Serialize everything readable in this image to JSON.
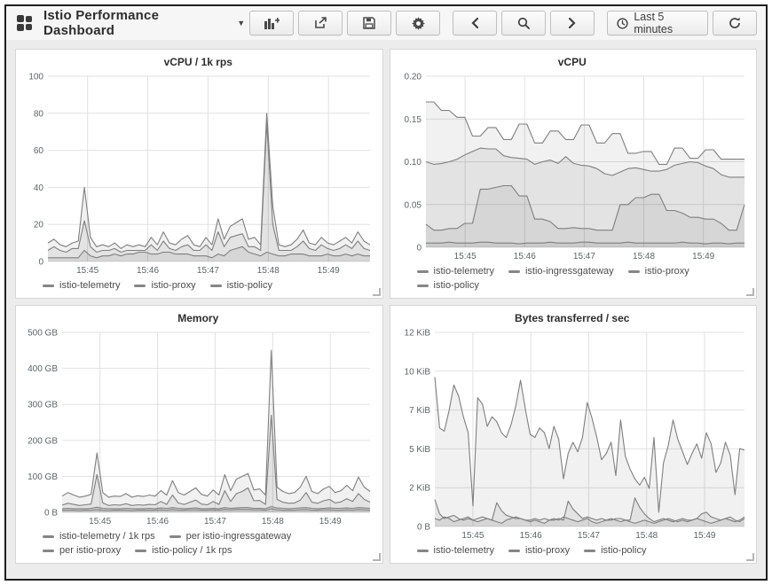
{
  "header": {
    "title": "Istio Performance Dashboard",
    "caret": "▼"
  },
  "toolbar": {
    "buttons": [
      "add-panel",
      "share-dashboard",
      "save-dashboard",
      "settings",
      "time-back",
      "zoom-out",
      "time-forward",
      "time-range",
      "refresh"
    ],
    "time_range_label": "Last 5 minutes"
  },
  "panels": [
    {
      "title": "vCPU / 1k rps",
      "chart_data": {
        "type": "area",
        "ymax": 100,
        "ylabels": [
          "100",
          "80",
          "60",
          "40",
          "20",
          "0"
        ],
        "axis_width": 32,
        "xticks": [
          {
            "label": "15:45",
            "f": 0.123
          },
          {
            "label": "15:46",
            "f": 0.31
          },
          {
            "label": "15:47",
            "f": 0.497
          },
          {
            "label": "15:48",
            "f": 0.684
          },
          {
            "label": "15:49",
            "f": 0.871
          }
        ],
        "series": [
          {
            "name": "istio-telemetry",
            "values": [
              10,
              12,
              9,
              8,
              10,
              11,
              40,
              13,
              8,
              9,
              8,
              10,
              7,
              9,
              8,
              9,
              8,
              13,
              9,
              16,
              10,
              9,
              12,
              14,
              9,
              8,
              13,
              9,
              23,
              12,
              19,
              21,
              23,
              12,
              13,
              9,
              80,
              30,
              9,
              8,
              9,
              12,
              17,
              10,
              9,
              13,
              10,
              9,
              11,
              13,
              10,
              16,
              11,
              9
            ]
          },
          {
            "name": "istio-proxy",
            "values": [
              6,
              8,
              6,
              5,
              7,
              7,
              22,
              8,
              5,
              6,
              6,
              7,
              5,
              6,
              6,
              6,
              6,
              9,
              6,
              11,
              7,
              6,
              8,
              9,
              6,
              6,
              9,
              6,
              16,
              8,
              13,
              14,
              15,
              8,
              8,
              6,
              75,
              20,
              6,
              6,
              6,
              8,
              11,
              7,
              6,
              9,
              7,
              6,
              7,
              9,
              7,
              11,
              7,
              6
            ]
          },
          {
            "name": "istio-policy",
            "values": [
              2,
              2,
              2,
              2,
              2,
              2,
              6,
              3,
              2,
              3,
              3,
              4,
              3,
              4,
              4,
              5,
              5,
              4,
              4,
              5,
              5,
              4,
              4,
              4,
              3,
              3,
              3,
              2,
              4,
              3,
              6,
              7,
              8,
              5,
              4,
              3,
              5,
              4,
              3,
              3,
              4,
              4,
              4,
              3,
              3,
              3,
              4,
              3,
              3,
              4,
              3,
              4,
              3,
              3
            ]
          }
        ]
      }
    },
    {
      "title": "vCPU",
      "chart_data": {
        "type": "area",
        "ymax": 0.2,
        "ylabels": [
          "0.20",
          "0.15",
          "0.10",
          "0.05",
          "0"
        ],
        "axis_width": 36,
        "xticks": [
          {
            "label": "15:45",
            "f": 0.123
          },
          {
            "label": "15:46",
            "f": 0.31
          },
          {
            "label": "15:47",
            "f": 0.497
          },
          {
            "label": "15:48",
            "f": 0.684
          },
          {
            "label": "15:49",
            "f": 0.871
          }
        ],
        "series": [
          {
            "name": "istio-telemetry",
            "values": [
              0.17,
              0.17,
              0.16,
              0.16,
              0.152,
              0.152,
              0.13,
              0.13,
              0.14,
              0.14,
              0.126,
              0.126,
              0.144,
              0.144,
              0.122,
              0.122,
              0.136,
              0.136,
              0.126,
              0.126,
              0.143,
              0.143,
              0.122,
              0.122,
              0.133,
              0.133,
              0.11,
              0.11,
              0.112,
              0.112,
              0.097,
              0.097,
              0.116,
              0.116,
              0.104,
              0.104,
              0.114,
              0.114,
              0.103,
              0.103,
              0.103,
              0.103
            ]
          },
          {
            "name": "istio-ingressgateway",
            "values": [
              0.1,
              0.097,
              0.098,
              0.1,
              0.103,
              0.108,
              0.112,
              0.116,
              0.115,
              0.115,
              0.107,
              0.105,
              0.104,
              0.103,
              0.097,
              0.1,
              0.102,
              0.098,
              0.106,
              0.098,
              0.096,
              0.095,
              0.092,
              0.086,
              0.084,
              0.088,
              0.092,
              0.093,
              0.091,
              0.089,
              0.089,
              0.091,
              0.096,
              0.098,
              0.1,
              0.099,
              0.095,
              0.092,
              0.085,
              0.082,
              0.082,
              0.082
            ]
          },
          {
            "name": "istio-proxy",
            "values": [
              0.027,
              0.02,
              0.02,
              0.022,
              0.022,
              0.028,
              0.028,
              0.068,
              0.068,
              0.07,
              0.072,
              0.072,
              0.06,
              0.06,
              0.033,
              0.033,
              0.03,
              0.022,
              0.022,
              0.023,
              0.022,
              0.022,
              0.02,
              0.02,
              0.02,
              0.05,
              0.05,
              0.058,
              0.058,
              0.062,
              0.062,
              0.043,
              0.043,
              0.04,
              0.035,
              0.035,
              0.033,
              0.033,
              0.028,
              0.02,
              0.02,
              0.05
            ]
          },
          {
            "name": "istio-policy",
            "values": [
              0.005,
              0.005,
              0.005,
              0.006,
              0.005,
              0.005,
              0.005,
              0.006,
              0.006,
              0.005,
              0.005,
              0.005,
              0.004,
              0.005,
              0.005,
              0.005,
              0.006,
              0.005,
              0.005,
              0.005,
              0.006,
              0.006,
              0.005,
              0.005,
              0.005,
              0.005,
              0.006,
              0.005,
              0.005,
              0.005,
              0.005,
              0.005,
              0.005,
              0.006,
              0.005,
              0.005,
              0.004,
              0.005,
              0.005,
              0.004,
              0.005,
              0.005
            ]
          }
        ]
      }
    },
    {
      "title": "Memory",
      "chart_data": {
        "type": "area",
        "ymax": 500,
        "ylabels": [
          "500 GB",
          "400 GB",
          "300 GB",
          "200 GB",
          "100 GB",
          "0 B"
        ],
        "axis_width": 48,
        "xticks": [
          {
            "label": "15:45",
            "f": 0.123
          },
          {
            "label": "15:46",
            "f": 0.31
          },
          {
            "label": "15:47",
            "f": 0.497
          },
          {
            "label": "15:48",
            "f": 0.684
          },
          {
            "label": "15:49",
            "f": 0.871
          }
        ],
        "series": [
          {
            "name": "istio-telemetry / 1k rps",
            "values": [
              45,
              55,
              48,
              42,
              45,
              50,
              165,
              55,
              42,
              45,
              44,
              52,
              42,
              46,
              44,
              48,
              45,
              60,
              48,
              88,
              55,
              48,
              58,
              68,
              50,
              45,
              62,
              48,
              105,
              60,
              92,
              100,
              108,
              62,
              65,
              48,
              450,
              70,
              58,
              52,
              55,
              70,
              100,
              58,
              52,
              65,
              72,
              55,
              60,
              75,
              60,
              98,
              70,
              58
            ]
          },
          {
            "name": "per istio-ingressgateway",
            "values": [
              20,
              25,
              22,
              19,
              21,
              23,
              105,
              26,
              19,
              21,
              20,
              24,
              19,
              21,
              20,
              22,
              21,
              30,
              22,
              48,
              26,
              22,
              28,
              34,
              23,
              21,
              30,
              22,
              60,
              30,
              52,
              58,
              68,
              32,
              33,
              22,
              270,
              36,
              28,
              25,
              26,
              34,
              55,
              28,
              25,
              32,
              36,
              26,
              29,
              38,
              30,
              52,
              36,
              28
            ]
          },
          {
            "name": "per istio-proxy",
            "values": [
              10,
              11,
              10,
              10,
              10,
              11,
              14,
              11,
              10,
              10,
              10,
              11,
              10,
              10,
              10,
              11,
              10,
              12,
              11,
              13,
              11,
              10,
              11,
              12,
              10,
              10,
              11,
              10,
              13,
              11,
              12,
              13,
              13,
              11,
              11,
              10,
              16,
              12,
              11,
              10,
              11,
              12,
              13,
              11,
              10,
              11,
              12,
              11,
              11,
              12,
              11,
              13,
              12,
              11
            ]
          },
          {
            "name": "istio-policy / 1k rps",
            "values": [
              6,
              6,
              6,
              5,
              6,
              6,
              8,
              6,
              5,
              6,
              6,
              6,
              5,
              6,
              6,
              6,
              6,
              7,
              6,
              8,
              6,
              6,
              7,
              7,
              6,
              6,
              7,
              6,
              8,
              7,
              8,
              8,
              8,
              7,
              7,
              6,
              10,
              7,
              6,
              6,
              6,
              7,
              8,
              6,
              6,
              7,
              7,
              6,
              6,
              7,
              6,
              8,
              7,
              6
            ]
          }
        ]
      }
    },
    {
      "title": "Bytes transferred / sec",
      "chart_data": {
        "type": "area",
        "ymax": 12.21,
        "ylabels": [
          "12 KiB",
          "10 KiB",
          "7 KiB",
          "5 KiB",
          "2 KiB",
          "0 B"
        ],
        "axis_width": 46,
        "xticks": [
          {
            "label": "15:45",
            "f": 0.123
          },
          {
            "label": "15:46",
            "f": 0.31
          },
          {
            "label": "15:47",
            "f": 0.497
          },
          {
            "label": "15:48",
            "f": 0.684
          },
          {
            "label": "15:49",
            "f": 0.871
          }
        ],
        "series": [
          {
            "name": "istio-telemetry",
            "values": [
              9.4,
              6.2,
              6.0,
              7.3,
              8.9,
              8.2,
              6.9,
              5.9,
              1.3,
              8.1,
              7.7,
              6.3,
              6.9,
              6.6,
              5.9,
              5.6,
              6.4,
              7.6,
              9.2,
              7.4,
              5.8,
              5.6,
              6.2,
              5.9,
              4.9,
              6.3,
              5.5,
              3.0,
              4.6,
              5.3,
              4.7,
              5.6,
              7.8,
              6.8,
              5.6,
              4.2,
              4.6,
              5.3,
              3.2,
              6.7,
              4.4,
              3.6,
              3.0,
              2.6,
              3.1,
              2.4,
              5.6,
              0.9,
              4.0,
              5.1,
              6.7,
              5.5,
              4.7,
              3.9,
              4.6,
              5.2,
              4.3,
              5.9,
              5.2,
              3.4,
              4.0,
              5.3,
              4.5,
              2.0,
              4.9,
              4.8
            ]
          },
          {
            "name": "istio-proxy",
            "values": [
              1.7,
              0.8,
              0.5,
              0.6,
              0.7,
              0.5,
              0.4,
              0.5,
              0.4,
              0.5,
              0.6,
              0.5,
              0.4,
              1.5,
              1.0,
              0.7,
              0.6,
              0.5,
              0.5,
              0.4,
              0.4,
              0.5,
              0.4,
              0.5,
              0.4,
              0.4,
              0.5,
              0.4,
              1.6,
              1.1,
              0.8,
              0.5,
              0.6,
              0.5,
              0.4,
              0.5,
              0.4,
              0.4,
              0.5,
              0.5,
              0.4,
              0.4,
              1.8,
              1.2,
              0.8,
              0.5,
              0.3,
              0.4,
              0.5,
              0.4,
              0.3,
              0.4,
              0.5,
              0.4,
              0.4,
              0.5,
              0.8,
              0.9,
              0.6,
              0.5,
              0.4,
              0.5,
              0.4,
              0.3,
              0.4,
              0.6
            ]
          },
          {
            "name": "istio-policy",
            "values": [
              0.5,
              0.4,
              0.6,
              0.5,
              0.3,
              0.4,
              0.5,
              0.6,
              0.4,
              0.3,
              0.4,
              0.5,
              0.4,
              0.3,
              0.2,
              0.4,
              0.5,
              0.6,
              0.5,
              0.4,
              0.3,
              0.4,
              0.3,
              0.2,
              0.4,
              0.5,
              0.4,
              0.6,
              0.5,
              0.4,
              0.3,
              0.4,
              0.5,
              0.3,
              0.2,
              0.3,
              0.4,
              0.5,
              0.4,
              0.3,
              0.4,
              0.3,
              0.2,
              0.3,
              0.4,
              0.3,
              0.2,
              0.3,
              0.4,
              0.5,
              0.4,
              0.3,
              0.4,
              0.3,
              0.4,
              0.5,
              0.4,
              0.3,
              0.2,
              0.3,
              0.4,
              0.5,
              0.6,
              0.4,
              0.3,
              0.5
            ]
          }
        ]
      }
    }
  ],
  "colors": {
    "series_stroke": "#7f7f7f",
    "series_fill": "rgba(0,0,0,0.055)",
    "grid_line": "#e1e1e1",
    "panel_border": "#d6d6d6",
    "page_bg": "#ececec"
  }
}
